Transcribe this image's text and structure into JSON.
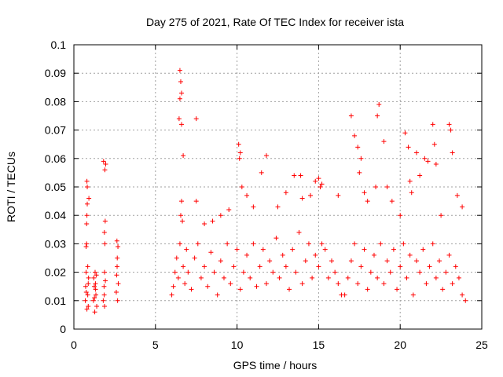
{
  "chart_data": {
    "type": "scatter",
    "title": "Day 275 of 2021, Rate Of TEC Index for receiver ista",
    "xlabel": "GPS time / hours",
    "ylabel": "ROTI / TECUs",
    "xlim": [
      0,
      25
    ],
    "ylim": [
      0,
      0.1
    ],
    "xticks": [
      0,
      5,
      10,
      15,
      20,
      25
    ],
    "xtick_labels": [
      "0",
      "5",
      "10",
      "15",
      "20",
      "25"
    ],
    "yticks": [
      0,
      0.01,
      0.02,
      0.03,
      0.04,
      0.05,
      0.06,
      0.07,
      0.08,
      0.09,
      0.1
    ],
    "ytick_labels": [
      "0",
      "0.01",
      "0.02",
      "0.03",
      "0.04",
      "0.05",
      "0.06",
      "0.07",
      "0.08",
      "0.09",
      "0.1"
    ],
    "grid": true,
    "marker": "+",
    "color": "#ff0000",
    "series": [
      {
        "name": "ROTI",
        "x": [
          0.7,
          0.72,
          0.75,
          0.78,
          0.8,
          0.82,
          0.85,
          0.88,
          0.9,
          0.92,
          0.75,
          0.8,
          0.85,
          0.78,
          0.82,
          0.88,
          0.8,
          0.76,
          1.2,
          1.25,
          1.3,
          1.35,
          1.4,
          1.22,
          1.28,
          1.33,
          1.38,
          1.26,
          1.32,
          1.8,
          1.85,
          1.88,
          1.9,
          1.92,
          1.95,
          1.82,
          1.87,
          1.93,
          1.86,
          1.9,
          1.88,
          2.6,
          2.65,
          2.7,
          2.62,
          2.68,
          2.66,
          2.72,
          2.64,
          6.0,
          6.1,
          6.2,
          6.3,
          6.4,
          6.5,
          6.55,
          6.6,
          6.65,
          6.7,
          6.8,
          6.9,
          7.0,
          7.2,
          7.4,
          7.6,
          7.8,
          8.0,
          8.2,
          8.4,
          8.6,
          8.8,
          9.0,
          9.2,
          9.4,
          9.6,
          9.8,
          10.0,
          10.2,
          10.4,
          10.6,
          10.8,
          11.0,
          11.2,
          11.4,
          11.6,
          11.8,
          12.0,
          12.2,
          12.4,
          12.6,
          12.8,
          13.0,
          13.2,
          13.4,
          13.6,
          13.8,
          14.0,
          14.2,
          14.4,
          14.6,
          14.8,
          15.0,
          15.2,
          15.4,
          15.6,
          15.8,
          16.0,
          16.2,
          16.4,
          6.5,
          6.55,
          6.6,
          6.5,
          6.45,
          6.6,
          6.7,
          7.5,
          7.5,
          8.0,
          8.5,
          9.0,
          9.5,
          10.1,
          10.2,
          10.15,
          10.3,
          10.6,
          11.0,
          11.5,
          11.8,
          12.5,
          13.0,
          13.5,
          13.9,
          14.0,
          14.5,
          14.8,
          15.0,
          15.1,
          15.2,
          16.2,
          16.6,
          16.8,
          17.0,
          17.2,
          17.4,
          17.6,
          17.8,
          18.0,
          18.2,
          18.4,
          18.6,
          18.8,
          19.0,
          19.2,
          19.4,
          19.6,
          19.8,
          20.0,
          20.2,
          20.4,
          20.6,
          20.8,
          21.0,
          21.2,
          21.4,
          21.6,
          21.8,
          22.0,
          22.2,
          22.4,
          22.6,
          22.8,
          23.0,
          23.2,
          23.4,
          23.6,
          23.8,
          24.0,
          17.0,
          17.2,
          17.4,
          17.5,
          17.6,
          17.8,
          18.0,
          18.5,
          18.6,
          18.7,
          19.0,
          19.2,
          19.5,
          20.0,
          20.3,
          20.5,
          20.6,
          20.7,
          21.0,
          21.2,
          21.5,
          21.7,
          22.0,
          22.1,
          22.2,
          22.5,
          23.0,
          23.1,
          23.2,
          23.5,
          23.8
        ],
        "y": [
          0.01,
          0.015,
          0.02,
          0.03,
          0.04,
          0.05,
          0.012,
          0.008,
          0.018,
          0.046,
          0.029,
          0.052,
          0.022,
          0.037,
          0.044,
          0.016,
          0.007,
          0.013,
          0.01,
          0.015,
          0.02,
          0.012,
          0.008,
          0.018,
          0.006,
          0.014,
          0.019,
          0.011,
          0.016,
          0.01,
          0.015,
          0.02,
          0.03,
          0.038,
          0.058,
          0.059,
          0.034,
          0.017,
          0.012,
          0.056,
          0.008,
          0.013,
          0.022,
          0.029,
          0.019,
          0.01,
          0.025,
          0.016,
          0.031,
          0.012,
          0.015,
          0.02,
          0.025,
          0.018,
          0.03,
          0.04,
          0.045,
          0.038,
          0.022,
          0.016,
          0.028,
          0.02,
          0.014,
          0.025,
          0.03,
          0.018,
          0.022,
          0.015,
          0.027,
          0.02,
          0.012,
          0.024,
          0.018,
          0.03,
          0.016,
          0.022,
          0.028,
          0.014,
          0.02,
          0.026,
          0.018,
          0.03,
          0.015,
          0.022,
          0.028,
          0.016,
          0.024,
          0.02,
          0.032,
          0.018,
          0.026,
          0.022,
          0.014,
          0.028,
          0.02,
          0.034,
          0.016,
          0.024,
          0.03,
          0.018,
          0.026,
          0.022,
          0.03,
          0.028,
          0.018,
          0.024,
          0.02,
          0.016,
          0.012,
          0.091,
          0.087,
          0.083,
          0.081,
          0.074,
          0.072,
          0.061,
          0.074,
          0.045,
          0.037,
          0.038,
          0.04,
          0.042,
          0.065,
          0.062,
          0.06,
          0.05,
          0.047,
          0.043,
          0.055,
          0.061,
          0.043,
          0.048,
          0.054,
          0.054,
          0.046,
          0.047,
          0.052,
          0.053,
          0.05,
          0.051,
          0.047,
          0.012,
          0.018,
          0.024,
          0.03,
          0.016,
          0.022,
          0.028,
          0.014,
          0.02,
          0.026,
          0.018,
          0.03,
          0.016,
          0.024,
          0.02,
          0.028,
          0.014,
          0.022,
          0.03,
          0.018,
          0.026,
          0.012,
          0.024,
          0.02,
          0.028,
          0.016,
          0.022,
          0.03,
          0.018,
          0.024,
          0.014,
          0.02,
          0.026,
          0.016,
          0.022,
          0.018,
          0.012,
          0.01,
          0.075,
          0.068,
          0.064,
          0.055,
          0.06,
          0.048,
          0.045,
          0.05,
          0.075,
          0.079,
          0.066,
          0.05,
          0.045,
          0.04,
          0.069,
          0.064,
          0.052,
          0.048,
          0.062,
          0.054,
          0.06,
          0.059,
          0.072,
          0.065,
          0.058,
          0.04,
          0.072,
          0.07,
          0.062,
          0.047,
          0.043
        ]
      }
    ]
  }
}
